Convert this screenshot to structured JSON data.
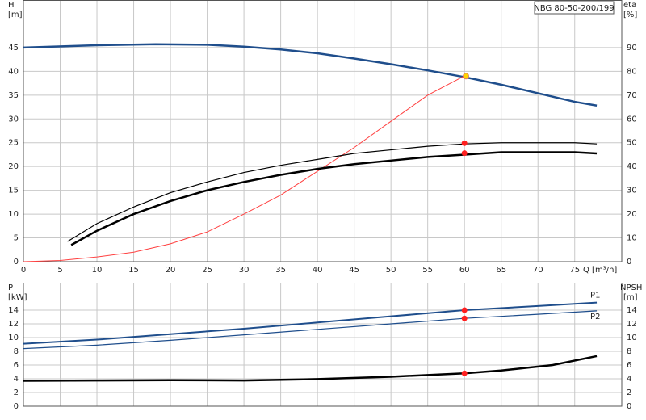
{
  "chart_data": [
    {
      "type": "line",
      "title": "NBG 80-50-200/199",
      "ylabel": "H",
      "yunit": "[m]",
      "y2label": "eta",
      "y2unit": "[%]",
      "xlabel": "Q [m³/h]",
      "xlim": [
        0,
        81.4
      ],
      "xticks": [
        0,
        5,
        10,
        15,
        20,
        25,
        30,
        35,
        40,
        45,
        50,
        55,
        60,
        65,
        70,
        75
      ],
      "ylim": [
        0,
        55
      ],
      "yticks": [
        0,
        5,
        10,
        15,
        20,
        25,
        30,
        35,
        40,
        45
      ],
      "y2lim": [
        0,
        110
      ],
      "y2ticks": [
        0,
        10,
        20,
        30,
        40,
        50,
        60,
        70,
        80,
        90
      ],
      "grid": true,
      "series": [
        {
          "color": "#1f4e8c",
          "width": 2.5,
          "axis": "y",
          "x": [
            0,
            10,
            18,
            25,
            30,
            35,
            40,
            45,
            50,
            55,
            60,
            65,
            70,
            75,
            78
          ],
          "values": [
            45,
            45.5,
            45.7,
            45.6,
            45.2,
            44.6,
            43.8,
            42.7,
            41.5,
            40.2,
            38.8,
            37.2,
            35.4,
            33.6,
            32.8
          ]
        },
        {
          "color": "#ff4040",
          "width": 1,
          "axis": "y2",
          "x": [
            0,
            5,
            10,
            15,
            20,
            25,
            30,
            35,
            40,
            45,
            50,
            55,
            60.2
          ],
          "values": [
            0,
            0.5,
            2,
            4,
            7.5,
            12.5,
            20,
            28,
            38,
            48,
            59,
            70,
            78.4
          ]
        },
        {
          "color": "#000000",
          "width": 1.2,
          "axis": "y2",
          "x": [
            6,
            10,
            15,
            20,
            25,
            30,
            35,
            40,
            45,
            50,
            55,
            60,
            65,
            70,
            75,
            78
          ],
          "values": [
            8.5,
            16,
            23,
            29,
            33.5,
            37.5,
            40.5,
            43,
            45.5,
            47,
            48.5,
            49.5,
            50,
            50,
            50,
            49.5
          ]
        },
        {
          "color": "#000000",
          "width": 2.5,
          "axis": "y2",
          "x": [
            6.5,
            10,
            15,
            20,
            25,
            30,
            35,
            40,
            45,
            50,
            55,
            60,
            65,
            70,
            75,
            78
          ],
          "values": [
            7,
            13,
            20,
            25.5,
            30,
            33.5,
            36.5,
            39,
            41,
            42.5,
            44,
            45,
            46,
            46,
            46,
            45.5
          ]
        }
      ],
      "markers": [
        {
          "x": 60,
          "y": 49.8,
          "axis": "y2",
          "color": "#ff2020"
        },
        {
          "x": 60,
          "y": 45.6,
          "axis": "y2",
          "color": "#ff2020"
        },
        {
          "x": 60.2,
          "y": 39,
          "axis": "y",
          "color": "#ffd400"
        }
      ]
    },
    {
      "type": "line",
      "ylabel": "P",
      "yunit": "[kW]",
      "y2label": "NPSH",
      "y2unit": "[m]",
      "xlim": [
        0,
        81.4
      ],
      "ylim": [
        0,
        18
      ],
      "yticks": [
        0,
        2,
        4,
        6,
        8,
        10,
        12,
        14
      ],
      "y2lim": [
        0,
        18
      ],
      "y2ticks": [
        0,
        2,
        4,
        6,
        8,
        10,
        12,
        14
      ],
      "grid": true,
      "series": [
        {
          "name": "P1",
          "color": "#1f4e8c",
          "width": 2,
          "axis": "y",
          "x": [
            0,
            10,
            20,
            30,
            40,
            50,
            60,
            70,
            78
          ],
          "values": [
            9.1,
            9.7,
            10.5,
            11.3,
            12.2,
            13.1,
            14.0,
            14.6,
            15.1
          ]
        },
        {
          "name": "P2",
          "color": "#1f4e8c",
          "width": 1.2,
          "axis": "y",
          "x": [
            0,
            10,
            20,
            30,
            40,
            50,
            60,
            70,
            78
          ],
          "values": [
            8.4,
            8.9,
            9.6,
            10.4,
            11.2,
            12.0,
            12.8,
            13.4,
            13.9
          ]
        },
        {
          "color": "#000000",
          "width": 2.5,
          "axis": "y2",
          "x": [
            0,
            10,
            20,
            30,
            40,
            50,
            60,
            65,
            72,
            78
          ],
          "values": [
            3.7,
            3.75,
            3.8,
            3.75,
            3.95,
            4.3,
            4.8,
            5.2,
            6.0,
            7.3
          ]
        }
      ],
      "markers": [
        {
          "x": 60,
          "y": 14.0,
          "axis": "y",
          "color": "#ff2020"
        },
        {
          "x": 60,
          "y": 12.8,
          "axis": "y",
          "color": "#ff2020"
        },
        {
          "x": 60,
          "y": 4.8,
          "axis": "y2",
          "color": "#ff2020"
        }
      ]
    }
  ]
}
